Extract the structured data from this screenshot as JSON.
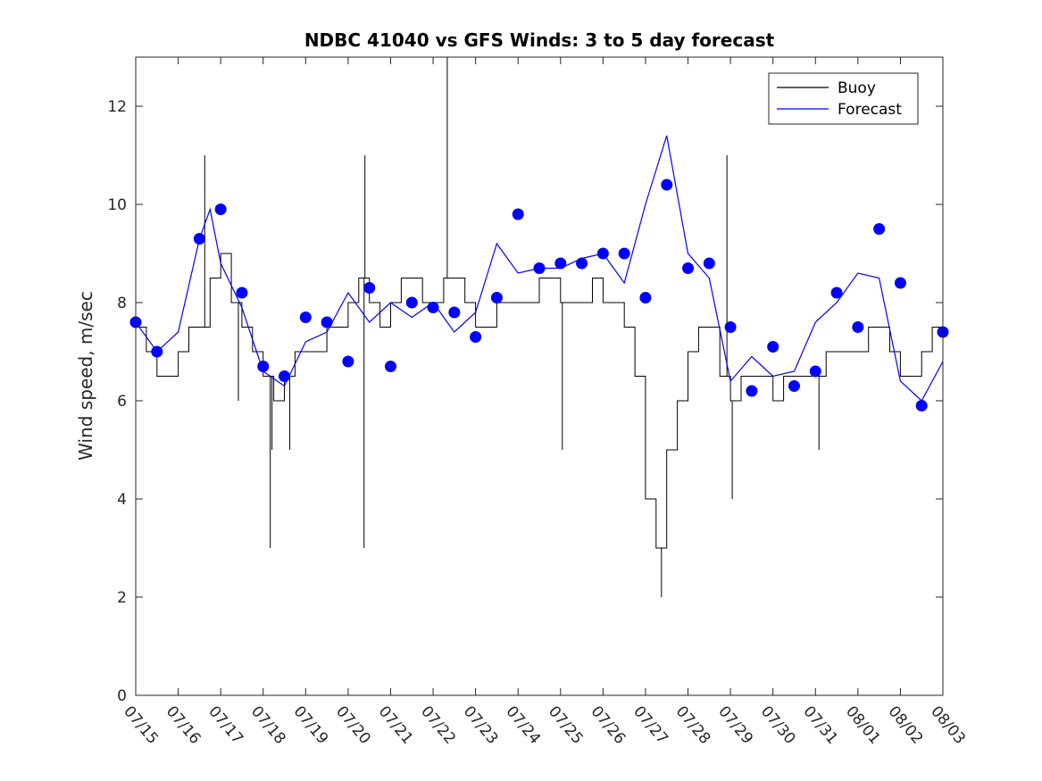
{
  "chart_data": {
    "type": "line",
    "title": "NDBC 41040 vs GFS Winds: 3 to 5 day forecast",
    "xlabel": "",
    "ylabel": "Wind speed, m/sec",
    "ylim": [
      0,
      13
    ],
    "yticks": [
      0,
      2,
      4,
      6,
      8,
      10,
      12
    ],
    "xlim": [
      "07/15",
      "08/03"
    ],
    "xticks": [
      "07/15",
      "07/16",
      "07/17",
      "07/18",
      "07/19",
      "07/20",
      "07/21",
      "07/22",
      "07/23",
      "07/24",
      "07/25",
      "07/26",
      "07/27",
      "07/28",
      "07/29",
      "07/30",
      "07/31",
      "08/01",
      "08/02",
      "08/03"
    ],
    "grid": false,
    "legend_position": "top-right",
    "series": [
      {
        "name": "Buoy",
        "color": "#000000",
        "style": "stair-line",
        "points": [
          [
            "07/15",
            7.5
          ],
          [
            "07/15 06:00",
            7
          ],
          [
            "07/15 12:00",
            6.5
          ],
          [
            "07/15 18:00",
            6.5
          ],
          [
            "07/16",
            7
          ],
          [
            "07/16 06:00",
            7.5
          ],
          [
            "07/16 12:00",
            7.5
          ],
          [
            "07/16 18:00",
            8.5
          ],
          [
            "07/17",
            9
          ],
          [
            "07/17 06:00",
            8
          ],
          [
            "07/17 12:00",
            7.5
          ],
          [
            "07/17 18:00",
            7
          ],
          [
            "07/18",
            6.5
          ],
          [
            "07/18 06:00",
            6
          ],
          [
            "07/18 12:00",
            6.5
          ],
          [
            "07/18 18:00",
            7
          ],
          [
            "07/19",
            7
          ],
          [
            "07/19 06:00",
            7
          ],
          [
            "07/19 12:00",
            7.5
          ],
          [
            "07/19 18:00",
            7.5
          ],
          [
            "07/20",
            8
          ],
          [
            "07/20 06:00",
            8.5
          ],
          [
            "07/20 12:00",
            8
          ],
          [
            "07/20 18:00",
            7.5
          ],
          [
            "07/21",
            8
          ],
          [
            "07/21 06:00",
            8.5
          ],
          [
            "07/21 12:00",
            8.5
          ],
          [
            "07/21 18:00",
            8
          ],
          [
            "07/22",
            8
          ],
          [
            "07/22 06:00",
            8.5
          ],
          [
            "07/22 12:00",
            8.5
          ],
          [
            "07/22 18:00",
            8
          ],
          [
            "07/23",
            7.5
          ],
          [
            "07/23 06:00",
            7.5
          ],
          [
            "07/23 12:00",
            8
          ],
          [
            "07/23 18:00",
            8
          ],
          [
            "07/24",
            8
          ],
          [
            "07/24 06:00",
            8
          ],
          [
            "07/24 12:00",
            8.5
          ],
          [
            "07/24 18:00",
            8.5
          ],
          [
            "07/25",
            8
          ],
          [
            "07/25 06:00",
            8
          ],
          [
            "07/25 12:00",
            8
          ],
          [
            "07/25 18:00",
            8.5
          ],
          [
            "07/26",
            8
          ],
          [
            "07/26 06:00",
            8
          ],
          [
            "07/26 12:00",
            7.5
          ],
          [
            "07/26 18:00",
            6.5
          ],
          [
            "07/27",
            4
          ],
          [
            "07/27 06:00",
            3
          ],
          [
            "07/27 12:00",
            5
          ],
          [
            "07/27 18:00",
            6
          ],
          [
            "07/28",
            7
          ],
          [
            "07/28 06:00",
            7.5
          ],
          [
            "07/28 12:00",
            7.5
          ],
          [
            "07/28 18:00",
            6.5
          ],
          [
            "07/29",
            6
          ],
          [
            "07/29 06:00",
            6.5
          ],
          [
            "07/29 12:00",
            6.5
          ],
          [
            "07/29 18:00",
            6.5
          ],
          [
            "07/30",
            6
          ],
          [
            "07/30 06:00",
            6.5
          ],
          [
            "07/30 12:00",
            6.5
          ],
          [
            "07/30 18:00",
            6.5
          ],
          [
            "07/31",
            6.5
          ],
          [
            "07/31 06:00",
            7
          ],
          [
            "07/31 12:00",
            7
          ],
          [
            "07/31 18:00",
            7
          ],
          [
            "08/01",
            7
          ],
          [
            "08/01 06:00",
            7.5
          ],
          [
            "08/01 12:00",
            7.5
          ],
          [
            "08/01 18:00",
            7
          ],
          [
            "08/02",
            6.5
          ],
          [
            "08/02 06:00",
            6.5
          ],
          [
            "08/02 12:00",
            7
          ],
          [
            "08/02 18:00",
            7.5
          ]
        ],
        "spikes": [
          [
            "07/16 15:00",
            11
          ],
          [
            "07/17 10:00",
            6
          ],
          [
            "07/18 04:00",
            3
          ],
          [
            "07/18 05:00",
            5
          ],
          [
            "07/18 15:00",
            5
          ],
          [
            "07/20 09:00",
            3
          ],
          [
            "07/20 09:30",
            11
          ],
          [
            "07/22 08:00",
            13
          ],
          [
            "07/25 01:00",
            5
          ],
          [
            "07/27 09:00",
            2
          ],
          [
            "07/28 22:00",
            11
          ],
          [
            "07/29 01:00",
            4
          ],
          [
            "07/31 02:00",
            5
          ]
        ]
      },
      {
        "name": "Forecast",
        "color": "#0000ff",
        "style": "line",
        "points": [
          [
            "07/15",
            7.6
          ],
          [
            "07/15 12:00",
            7.0
          ],
          [
            "07/16",
            7.4
          ],
          [
            "07/16 12:00",
            9.3
          ],
          [
            "07/16 18:00",
            9.9
          ],
          [
            "07/17",
            8.8
          ],
          [
            "07/17 12:00",
            7.9
          ],
          [
            "07/18",
            6.6
          ],
          [
            "07/18 12:00",
            6.3
          ],
          [
            "07/19",
            7.2
          ],
          [
            "07/19 12:00",
            7.4
          ],
          [
            "07/20",
            8.2
          ],
          [
            "07/20 12:00",
            7.6
          ],
          [
            "07/21",
            8.0
          ],
          [
            "07/21 12:00",
            7.7
          ],
          [
            "07/22",
            8.0
          ],
          [
            "07/22 12:00",
            7.4
          ],
          [
            "07/23",
            7.8
          ],
          [
            "07/23 12:00",
            9.2
          ],
          [
            "07/24",
            8.6
          ],
          [
            "07/24 12:00",
            8.7
          ],
          [
            "07/25",
            8.7
          ],
          [
            "07/25 12:00",
            8.9
          ],
          [
            "07/26",
            9.0
          ],
          [
            "07/26 12:00",
            8.4
          ],
          [
            "07/27",
            10.0
          ],
          [
            "07/27 12:00",
            11.4
          ],
          [
            "07/28",
            9.0
          ],
          [
            "07/28 12:00",
            8.5
          ],
          [
            "07/29",
            6.4
          ],
          [
            "07/29 12:00",
            6.9
          ],
          [
            "07/30",
            6.5
          ],
          [
            "07/30 12:00",
            6.6
          ],
          [
            "07/31",
            7.6
          ],
          [
            "07/31 12:00",
            8.0
          ],
          [
            "08/01",
            8.6
          ],
          [
            "08/01 12:00",
            8.5
          ],
          [
            "08/02",
            6.4
          ],
          [
            "08/02 12:00",
            6.0
          ],
          [
            "08/03",
            6.8
          ]
        ]
      }
    ],
    "markers": {
      "color": "#0000ff",
      "points": [
        [
          "07/15",
          7.6
        ],
        [
          "07/15 12:00",
          7.0
        ],
        [
          "07/16 12:00",
          9.3
        ],
        [
          "07/17",
          9.9
        ],
        [
          "07/17 12:00",
          8.2
        ],
        [
          "07/18",
          6.7
        ],
        [
          "07/18 12:00",
          6.5
        ],
        [
          "07/19",
          7.7
        ],
        [
          "07/19 12:00",
          7.6
        ],
        [
          "07/20",
          6.8
        ],
        [
          "07/20 12:00",
          8.3
        ],
        [
          "07/21",
          6.7
        ],
        [
          "07/21 12:00",
          8.0
        ],
        [
          "07/22",
          7.9
        ],
        [
          "07/22 12:00",
          7.8
        ],
        [
          "07/23",
          7.3
        ],
        [
          "07/23 12:00",
          8.1
        ],
        [
          "07/24",
          9.8
        ],
        [
          "07/24 12:00",
          8.7
        ],
        [
          "07/25",
          8.8
        ],
        [
          "07/25 12:00",
          8.8
        ],
        [
          "07/26",
          9.0
        ],
        [
          "07/26 12:00",
          9.0
        ],
        [
          "07/27",
          8.1
        ],
        [
          "07/27 12:00",
          10.4
        ],
        [
          "07/28",
          8.7
        ],
        [
          "07/28 12:00",
          8.8
        ],
        [
          "07/29",
          7.5
        ],
        [
          "07/29 12:00",
          6.2
        ],
        [
          "07/30",
          7.1
        ],
        [
          "07/30 12:00",
          6.3
        ],
        [
          "07/31",
          6.6
        ],
        [
          "07/31 12:00",
          8.2
        ],
        [
          "08/01",
          7.5
        ],
        [
          "08/01 12:00",
          9.5
        ],
        [
          "08/02",
          8.4
        ],
        [
          "08/02 12:00",
          5.9
        ],
        [
          "08/03",
          7.4
        ]
      ]
    }
  }
}
